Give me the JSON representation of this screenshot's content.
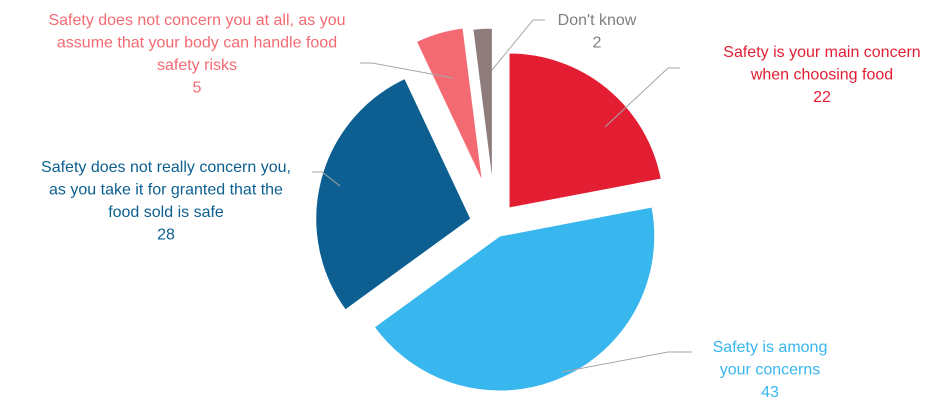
{
  "chart_data": {
    "type": "pie",
    "title": "",
    "slices": [
      {
        "label_lines": [
          "Safety is your main concern",
          "when choosing food"
        ],
        "value": 22,
        "color": "#e31e33"
      },
      {
        "label_lines": [
          "Safety is among",
          "your concerns"
        ],
        "value": 43,
        "color": "#38b6ee"
      },
      {
        "label_lines": [
          "Safety does not really concern you,",
          "as you take it for granted that the",
          "food sold is safe"
        ],
        "value": 28,
        "color": "#0c5f90"
      },
      {
        "label_lines": [
          "Safety does not concern you at all, as you",
          "assume that your body can handle food",
          "safety risks"
        ],
        "value": 5,
        "color": "#f46a72"
      },
      {
        "label_lines": [
          "Don't know"
        ],
        "value": 2,
        "color": "#8e7b7c"
      }
    ]
  }
}
